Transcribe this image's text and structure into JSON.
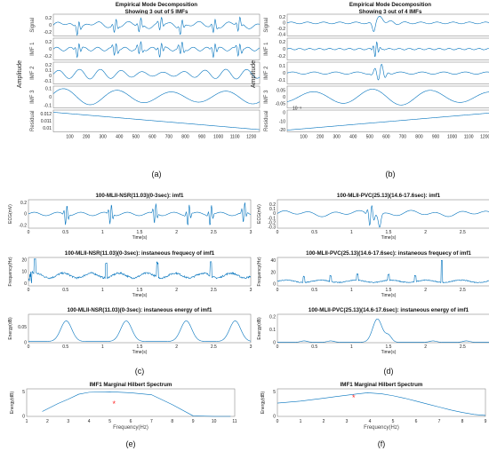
{
  "chart_data": [
    {
      "id": "a",
      "panel_label": "(a)",
      "type": "line",
      "title": "Empirical Mode Decomposition",
      "subtitle": "Showing 3 out of 5 IMFs",
      "ylabel": "Amplitude",
      "xticks": [
        "100",
        "200",
        "300",
        "400",
        "500",
        "600",
        "700",
        "800",
        "900",
        "1000",
        "1100",
        "1200"
      ],
      "xlim": [
        0,
        1250
      ],
      "rows": [
        {
          "label": "Signal",
          "yticks": [
            "0.2",
            "0",
            "-0.2"
          ],
          "ylim": [
            -0.3,
            0.3
          ],
          "kind": "signal"
        },
        {
          "label": "IMF 1",
          "yticks": [
            "0.2",
            "0",
            "-0.2"
          ],
          "ylim": [
            -0.3,
            0.3
          ],
          "kind": "imf1"
        },
        {
          "label": "IMF 2",
          "yticks": [
            "0.2",
            "0.1",
            "0",
            "-0.1"
          ],
          "ylim": [
            -0.15,
            0.25
          ],
          "kind": "imf2"
        },
        {
          "label": "IMF 3",
          "yticks": [
            "0.1",
            "0",
            "-0.1"
          ],
          "ylim": [
            -0.13,
            0.13
          ],
          "kind": "imf3"
        },
        {
          "label": "Residual",
          "yticks": [
            "0.012",
            "0.011",
            "0.01"
          ],
          "ylim": [
            0.0095,
            0.0125
          ],
          "kind": "residual_down"
        }
      ]
    },
    {
      "id": "b",
      "panel_label": "(b)",
      "type": "line",
      "title": "Empirical Mode Decomposition",
      "subtitle": "Showing 3 out of 4 IMFs",
      "ylabel": "Amplitude",
      "exponent_label": "10⁻³",
      "xticks": [
        "100",
        "200",
        "300",
        "400",
        "500",
        "600",
        "700",
        "800",
        "900",
        "1000",
        "1100",
        "1200"
      ],
      "xlim": [
        0,
        1250
      ],
      "rows": [
        {
          "label": "Signal",
          "yticks": [
            "0.2",
            "0",
            "-0.2",
            "-0.4"
          ],
          "ylim": [
            -0.45,
            0.3
          ],
          "kind": "signal_b"
        },
        {
          "label": "IMF 1",
          "yticks": [
            "0.2",
            "0",
            "-0.2"
          ],
          "ylim": [
            -0.3,
            0.3
          ],
          "kind": "imf1_b"
        },
        {
          "label": "IMF 2",
          "yticks": [
            "0.1",
            "0",
            "-0.1"
          ],
          "ylim": [
            -0.15,
            0.15
          ],
          "kind": "imf2_b"
        },
        {
          "label": "IMF 3",
          "yticks": [
            "0.05",
            "0",
            "-0.05"
          ],
          "ylim": [
            -0.08,
            0.08
          ],
          "kind": "imf3_b"
        },
        {
          "label": "Residual",
          "yticks": [
            "0",
            "-10",
            "-20"
          ],
          "ylim": [
            -22,
            3
          ],
          "kind": "residual_up"
        }
      ]
    },
    {
      "id": "c",
      "panel_label": "(c)",
      "type": "line",
      "xticks": [
        "0",
        "0.5",
        "1",
        "1.5",
        "2",
        "2.5",
        "3"
      ],
      "xlim": [
        0,
        3
      ],
      "xlabel": "Time(s)",
      "rows": [
        {
          "title": "100-MLII-NSR(11.03)(0-3sec): imf1",
          "ylabel": "ECG(mV)",
          "yticks": [
            "0.2",
            "0",
            "-0.2"
          ],
          "ylim": [
            -0.25,
            0.25
          ],
          "kind": "ecg_c"
        },
        {
          "title": "100-MLII-NSR(11.03)(0-3sec): instaneous frequecy of imf1",
          "ylabel": "Frequency(Hz)",
          "yticks": [
            "20",
            "10",
            "0"
          ],
          "ylim": [
            -2,
            22
          ],
          "kind": "freq_c"
        },
        {
          "title": "100-MLII-NSR(11.03)(0-3sec): instaneous energy of imf1",
          "ylabel": "Energy(dB)",
          "yticks": [
            "0.05",
            "0"
          ],
          "ylim": [
            0,
            0.09
          ],
          "kind": "energy_c"
        }
      ]
    },
    {
      "id": "d",
      "panel_label": "(d)",
      "type": "line",
      "xticks": [
        "0",
        "0.5",
        "1",
        "1.5",
        "2",
        "2.5",
        "3"
      ],
      "xlim": [
        0,
        3
      ],
      "xlabel": "Time(s)",
      "rows": [
        {
          "title": "100-MLII-PVC(25.13)(14.6-17.6sec): imf1",
          "ylabel": "ECG(mV)",
          "yticks": [
            "0.2",
            "0.1",
            "0",
            "-0.1",
            "-0.2",
            "-0.3"
          ],
          "ylim": [
            -0.32,
            0.3
          ],
          "kind": "ecg_d"
        },
        {
          "title": "100-MLII-PVC(25.13)(14.6-17.6sec): instaneous frequecy of imf1",
          "ylabel": "Frequency(Hz)",
          "yticks": [
            "40",
            "20",
            "0"
          ],
          "ylim": [
            -3,
            45
          ],
          "kind": "freq_d"
        },
        {
          "title": "100-MLII-PVC(25.13)(14.6-17.6sec): instaneous energy of imf1",
          "ylabel": "Energy(dB)",
          "yticks": [
            "0.2",
            "0.1",
            "0"
          ],
          "ylim": [
            0,
            0.22
          ],
          "kind": "energy_d"
        }
      ]
    },
    {
      "id": "e",
      "panel_label": "(e)",
      "type": "line",
      "title": "IMF1 Marginal Hilbert Spectrum",
      "xlabel": "Frequency(Hz)",
      "ylabel": "Energy(dB)",
      "xticks": [
        "1",
        "2",
        "3",
        "4",
        "5",
        "6",
        "7",
        "8",
        "9",
        "10",
        "11"
      ],
      "yticks": [
        "0",
        "5"
      ],
      "xlim": [
        1,
        11
      ],
      "ylim": [
        0,
        5.6
      ],
      "x": [
        1.75,
        2.5,
        3.0,
        3.5,
        4.0,
        5.0,
        6.0,
        7.0,
        8.0,
        9.0,
        10.0,
        10.8
      ],
      "y": [
        1.0,
        2.6,
        3.5,
        4.5,
        4.9,
        5.0,
        4.8,
        4.4,
        2.4,
        0.1,
        0.0,
        0.0
      ],
      "marker": {
        "x": 5.2,
        "y": 2.6,
        "symbol": "*"
      }
    },
    {
      "id": "f",
      "panel_label": "(f)",
      "type": "line",
      "title": "IMF1 Marginal Hilbert Spectrum",
      "xlabel": "Frequency(Hz)",
      "ylabel": "Energy(dB)",
      "xticks": [
        "0",
        "1",
        "2",
        "3",
        "4",
        "5",
        "6",
        "7",
        "8",
        "9"
      ],
      "yticks": [
        "0",
        "5"
      ],
      "xlim": [
        0,
        9
      ],
      "ylim": [
        0,
        5.6
      ],
      "x": [
        0.0,
        0.5,
        1.0,
        1.5,
        2.0,
        2.5,
        3.0,
        3.5,
        3.9,
        4.5,
        5.0,
        5.5,
        6.0,
        6.5,
        7.0,
        7.5,
        8.0,
        8.5,
        9.0
      ],
      "y": [
        2.7,
        2.9,
        3.1,
        3.4,
        3.7,
        4.0,
        4.3,
        4.6,
        4.8,
        4.6,
        4.2,
        3.7,
        3.1,
        2.5,
        1.9,
        1.3,
        0.8,
        0.4,
        0.2
      ],
      "marker": {
        "x": 3.3,
        "y": 3.9,
        "symbol": "*"
      }
    }
  ]
}
